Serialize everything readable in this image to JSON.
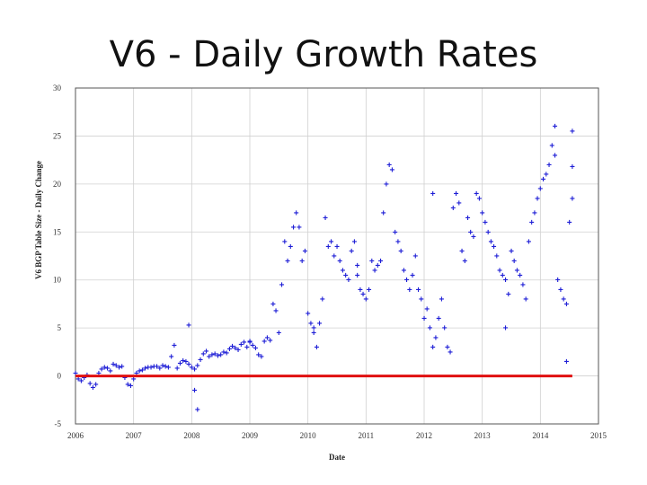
{
  "slide": {
    "title": "V6 - Daily Growth Rates"
  },
  "chart_data": {
    "type": "scatter",
    "title": "V6 - Daily Growth Rates",
    "xlabel": "Date",
    "ylabel": "V6 BGP Table Size - Daily Change",
    "xlim": [
      2006,
      2015
    ],
    "ylim": [
      -5,
      30
    ],
    "xticks": [
      "2006",
      "2007",
      "2008",
      "2009",
      "2010",
      "2011",
      "2012",
      "2013",
      "2014",
      "2015"
    ],
    "yticks": [
      "30",
      "25",
      "20",
      "15",
      "10",
      "5",
      "0",
      "-5"
    ],
    "grid": true,
    "colors": {
      "points": "#1f1fd6",
      "zero_line": "#e01010",
      "grid": "#d0d0d0",
      "frame": "#555555"
    },
    "series": [
      {
        "name": "Daily change",
        "marker": "+",
        "x": [
          2006.0,
          2006.05,
          2006.1,
          2006.15,
          2006.2,
          2006.25,
          2006.3,
          2006.35,
          2006.4,
          2006.45,
          2006.5,
          2006.55,
          2006.6,
          2006.65,
          2006.7,
          2006.75,
          2006.8,
          2006.85,
          2006.9,
          2006.95,
          2007.0,
          2007.05,
          2007.1,
          2007.15,
          2007.2,
          2007.25,
          2007.3,
          2007.35,
          2007.4,
          2007.45,
          2007.5,
          2007.55,
          2007.6,
          2007.65,
          2007.7,
          2007.75,
          2007.8,
          2007.85,
          2007.9,
          2007.95,
          2008.0,
          2008.05,
          2008.1,
          2008.15,
          2008.2,
          2008.25,
          2008.3,
          2008.35,
          2008.4,
          2008.45,
          2008.5,
          2008.55,
          2008.6,
          2008.65,
          2008.7,
          2008.75,
          2008.8,
          2008.85,
          2008.9,
          2008.95,
          2009.0,
          2009.05,
          2009.1,
          2009.15,
          2009.2,
          2009.25,
          2009.3,
          2009.35,
          2009.4,
          2009.45,
          2009.5,
          2009.55,
          2009.6,
          2009.65,
          2009.7,
          2009.75,
          2009.8,
          2009.85,
          2009.9,
          2009.95,
          2010.0,
          2010.05,
          2010.1,
          2010.15,
          2010.2,
          2010.25,
          2010.3,
          2010.35,
          2010.4,
          2010.45,
          2010.5,
          2010.55,
          2010.6,
          2010.65,
          2010.7,
          2010.75,
          2010.8,
          2010.85,
          2010.9,
          2010.95,
          2011.0,
          2011.05,
          2011.1,
          2011.15,
          2011.2,
          2011.25,
          2011.3,
          2011.35,
          2011.4,
          2011.45,
          2011.5,
          2011.55,
          2011.6,
          2011.65,
          2011.7,
          2011.75,
          2011.8,
          2011.85,
          2011.9,
          2011.95,
          2012.0,
          2012.05,
          2012.1,
          2012.15,
          2012.2,
          2012.25,
          2012.3,
          2012.35,
          2012.4,
          2012.45,
          2012.5,
          2012.55,
          2012.6,
          2012.65,
          2012.7,
          2012.75,
          2012.8,
          2012.85,
          2012.9,
          2012.95,
          2013.0,
          2013.05,
          2013.1,
          2013.15,
          2013.2,
          2013.25,
          2013.3,
          2013.35,
          2013.4,
          2013.45,
          2013.5,
          2013.55,
          2013.6,
          2013.65,
          2013.7,
          2013.75,
          2013.8,
          2013.85,
          2013.9,
          2013.95,
          2014.0,
          2014.05,
          2014.1,
          2014.15,
          2014.2,
          2014.25,
          2014.3,
          2014.35,
          2014.4,
          2014.45,
          2014.5,
          2014.55,
          2007.95,
          2008.05,
          2008.1,
          2009.0,
          2010.1,
          2010.85,
          2012.15,
          2013.4,
          2014.25,
          2014.55,
          2014.55,
          2014.45
        ],
        "y": [
          0.3,
          -0.3,
          -0.5,
          -0.2,
          0.1,
          -0.8,
          -1.2,
          -0.9,
          0.3,
          0.7,
          0.9,
          0.8,
          0.5,
          1.2,
          1.1,
          0.9,
          1.0,
          -0.2,
          -0.9,
          -1.0,
          -0.3,
          0.3,
          0.5,
          0.6,
          0.8,
          0.9,
          0.9,
          1.0,
          1.0,
          0.8,
          1.1,
          1.0,
          0.9,
          2.0,
          3.2,
          0.8,
          1.3,
          1.6,
          1.5,
          1.2,
          0.9,
          0.7,
          1.1,
          1.7,
          2.3,
          2.6,
          2.0,
          2.2,
          2.3,
          2.1,
          2.2,
          2.5,
          2.4,
          2.8,
          3.1,
          2.9,
          2.7,
          3.3,
          3.5,
          3.0,
          3.6,
          3.2,
          2.9,
          2.2,
          2.0,
          3.6,
          4.0,
          3.7,
          7.5,
          6.8,
          4.5,
          9.5,
          14.0,
          12.0,
          13.5,
          15.5,
          17.0,
          15.5,
          12.0,
          13.0,
          6.5,
          5.5,
          4.5,
          3.0,
          5.5,
          8.0,
          16.5,
          13.5,
          14.0,
          12.5,
          13.5,
          12.0,
          11.0,
          10.5,
          10.0,
          13.0,
          14.0,
          11.5,
          9.0,
          8.5,
          8.0,
          9.0,
          12.0,
          11.0,
          11.5,
          12.0,
          17.0,
          20.0,
          22.0,
          21.5,
          15.0,
          14.0,
          13.0,
          11.0,
          10.0,
          9.0,
          10.5,
          12.5,
          9.0,
          8.0,
          6.0,
          7.0,
          5.0,
          3.0,
          4.0,
          6.0,
          8.0,
          5.0,
          3.0,
          2.5,
          17.5,
          19.0,
          18.0,
          13.0,
          12.0,
          16.5,
          15.0,
          14.5,
          19.0,
          18.5,
          17.0,
          16.0,
          15.0,
          14.0,
          13.5,
          12.5,
          11.0,
          10.5,
          10.0,
          8.5,
          13.0,
          12.0,
          11.0,
          10.5,
          9.5,
          8.0,
          14.0,
          16.0,
          17.0,
          18.5,
          19.5,
          20.5,
          21.0,
          22.0,
          24.0,
          23.0,
          10.0,
          9.0,
          8.0,
          7.5,
          16.0,
          18.5,
          5.3,
          -1.5,
          -3.5,
          3.5,
          5.0,
          10.5,
          19.0,
          5.0,
          26.0,
          25.5,
          21.8,
          1.5
        ],
        "_note": "sampled approximation of the dense daily point cloud"
      }
    ],
    "reference_line": {
      "y": 0,
      "x_from": 2006,
      "x_to": 2014.55,
      "label": ""
    }
  }
}
